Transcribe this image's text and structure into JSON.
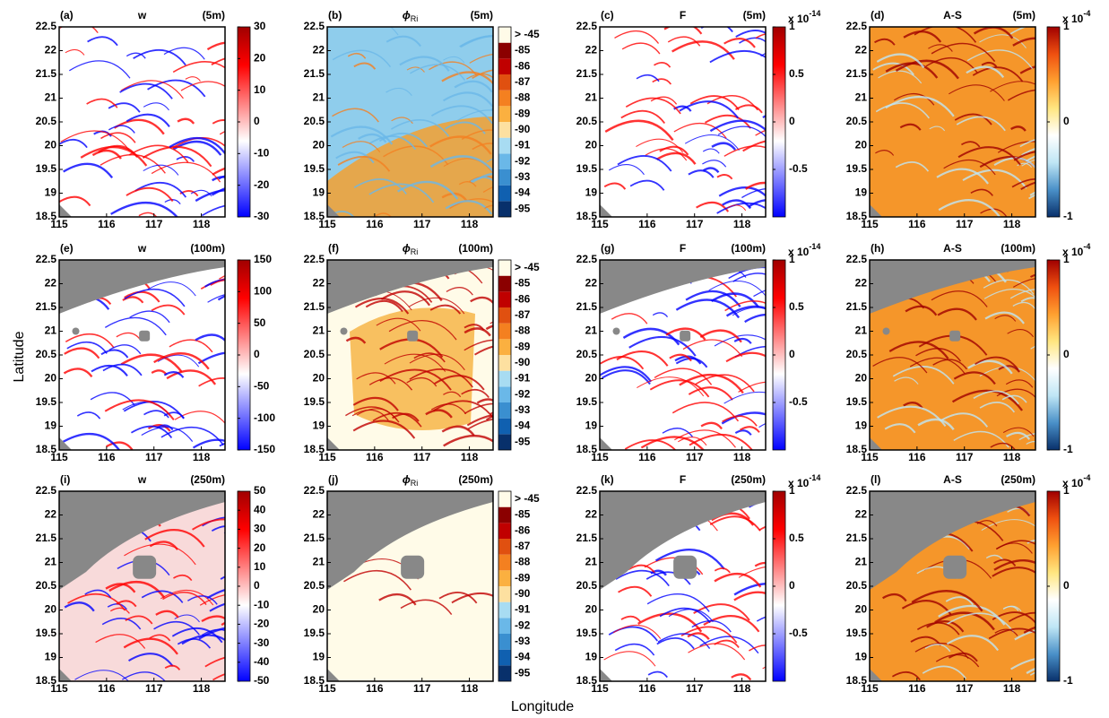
{
  "figure": {
    "xlabel": "Longitude",
    "ylabel": "Latitude"
  },
  "chart_data": [
    {
      "type": "map",
      "label": "(a)",
      "title": "w",
      "depth": "(5m)",
      "xlim": [
        115,
        118.5
      ],
      "xticks": [
        115,
        116,
        117,
        118
      ],
      "ylim": [
        18.5,
        22.5
      ],
      "yticks": [
        18.5,
        19,
        19.5,
        20,
        20.5,
        21,
        21.5,
        22,
        22.5
      ],
      "clim": [
        -30,
        30
      ],
      "cticks": [
        -30,
        -20,
        -10,
        0,
        10,
        20,
        30
      ],
      "colors": [
        "#0000ff",
        "#8080ff",
        "#ffffff",
        "#ff8080",
        "#ff0000",
        "#a00000"
      ]
    },
    {
      "type": "map",
      "label": "(b)",
      "title": "ϕ",
      "title_sub": "Ri",
      "depth": "(5m)",
      "xlim": [
        115,
        118.5
      ],
      "xticks": [
        115,
        116,
        117,
        118
      ],
      "ylim": [
        18.5,
        22.5
      ],
      "yticks": [
        18.5,
        19,
        19.5,
        20,
        20.5,
        21,
        21.5,
        22,
        22.5
      ],
      "ccategories": [
        "-95",
        "-94",
        "-93",
        "-92",
        "-91",
        "-90",
        "-89",
        "-88",
        "-87",
        "-86",
        "-85",
        "> -45"
      ],
      "colors": [
        "#08306b",
        "#1060b0",
        "#3a8fd0",
        "#6ab8e8",
        "#a8dcf2",
        "#fde0a0",
        "#fbb040",
        "#f48020",
        "#e05010",
        "#c00000",
        "#8b0000",
        "#fffbe8"
      ]
    },
    {
      "type": "map",
      "label": "(c)",
      "title": "F",
      "depth": "(5m)",
      "xlim": [
        115,
        118.5
      ],
      "xticks": [
        115,
        116,
        117,
        118
      ],
      "ylim": [
        18.5,
        22.5
      ],
      "yticks": [
        18.5,
        19,
        19.5,
        20,
        20.5,
        21,
        21.5,
        22,
        22.5
      ],
      "clim": [
        -1,
        1
      ],
      "cticks": [
        -0.5,
        0,
        0.5,
        1
      ],
      "cscale": "x 10",
      "cscale_exp": "-14",
      "colors": [
        "#0000ff",
        "#8080ff",
        "#ffffff",
        "#ff8080",
        "#ff0000",
        "#a00000"
      ]
    },
    {
      "type": "map",
      "label": "(d)",
      "title": "A-S",
      "depth": "(5m)",
      "xlim": [
        115,
        118.5
      ],
      "xticks": [
        115,
        116,
        117,
        118
      ],
      "ylim": [
        18.5,
        22.5
      ],
      "yticks": [
        18.5,
        19,
        19.5,
        20,
        20.5,
        21,
        21.5,
        22,
        22.5
      ],
      "clim": [
        -1,
        1
      ],
      "cticks": [
        -1,
        0,
        1
      ],
      "cscale": "x 10",
      "cscale_exp": "-4",
      "colors": [
        "#08306b",
        "#4a90c8",
        "#bfe6f5",
        "#ffffff",
        "#ffe680",
        "#ffa030",
        "#ef5010",
        "#a00000"
      ]
    },
    {
      "type": "map",
      "label": "(e)",
      "title": "w",
      "depth": "(100m)",
      "xlim": [
        115,
        118.5
      ],
      "xticks": [
        115,
        116,
        117,
        118
      ],
      "ylim": [
        18.5,
        22.5
      ],
      "yticks": [
        18.5,
        19,
        19.5,
        20,
        20.5,
        21,
        21.5,
        22,
        22.5
      ],
      "clim": [
        -150,
        150
      ],
      "cticks": [
        -150,
        -100,
        -50,
        0,
        50,
        100,
        150
      ],
      "colors": [
        "#0000ff",
        "#8080ff",
        "#ffffff",
        "#ff8080",
        "#ff0000",
        "#a00000"
      ]
    },
    {
      "type": "map",
      "label": "(f)",
      "title": "ϕ",
      "title_sub": "Ri",
      "depth": "(100m)",
      "xlim": [
        115,
        118.5
      ],
      "xticks": [
        115,
        116,
        117,
        118
      ],
      "ylim": [
        18.5,
        22.5
      ],
      "yticks": [
        18.5,
        19,
        19.5,
        20,
        20.5,
        21,
        21.5,
        22,
        22.5
      ],
      "ccategories": [
        "-95",
        "-94",
        "-93",
        "-92",
        "-91",
        "-90",
        "-89",
        "-88",
        "-87",
        "-86",
        "-85",
        "> -45"
      ],
      "colors": [
        "#08306b",
        "#1060b0",
        "#3a8fd0",
        "#6ab8e8",
        "#a8dcf2",
        "#fde0a0",
        "#fbb040",
        "#f48020",
        "#e05010",
        "#c00000",
        "#8b0000",
        "#fffbe8"
      ]
    },
    {
      "type": "map",
      "label": "(g)",
      "title": "F",
      "depth": "(100m)",
      "xlim": [
        115,
        118.5
      ],
      "xticks": [
        115,
        116,
        117,
        118
      ],
      "ylim": [
        18.5,
        22.5
      ],
      "yticks": [
        18.5,
        19,
        19.5,
        20,
        20.5,
        21,
        21.5,
        22,
        22.5
      ],
      "clim": [
        -1,
        1
      ],
      "cticks": [
        -0.5,
        0,
        0.5,
        1
      ],
      "cscale": "x 10",
      "cscale_exp": "-14",
      "colors": [
        "#0000ff",
        "#8080ff",
        "#ffffff",
        "#ff8080",
        "#ff0000",
        "#a00000"
      ]
    },
    {
      "type": "map",
      "label": "(h)",
      "title": "A-S",
      "depth": "(100m)",
      "xlim": [
        115,
        118.5
      ],
      "xticks": [
        115,
        116,
        117,
        118
      ],
      "ylim": [
        18.5,
        22.5
      ],
      "yticks": [
        18.5,
        19,
        19.5,
        20,
        20.5,
        21,
        21.5,
        22,
        22.5
      ],
      "clim": [
        -1,
        1
      ],
      "cticks": [
        -1,
        0,
        1
      ],
      "cscale": "x 10",
      "cscale_exp": "-4",
      "colors": [
        "#08306b",
        "#4a90c8",
        "#bfe6f5",
        "#ffffff",
        "#ffe680",
        "#ffa030",
        "#ef5010",
        "#a00000"
      ]
    },
    {
      "type": "map",
      "label": "(i)",
      "title": "w",
      "depth": "(250m)",
      "xlim": [
        115,
        118.5
      ],
      "xticks": [
        115,
        116,
        117,
        118
      ],
      "ylim": [
        18.5,
        22.5
      ],
      "yticks": [
        18.5,
        19,
        19.5,
        20,
        20.5,
        21,
        21.5,
        22,
        22.5
      ],
      "clim": [
        -50,
        50
      ],
      "cticks": [
        -50,
        -40,
        -30,
        -20,
        -10,
        0,
        10,
        20,
        30,
        40,
        50
      ],
      "colors": [
        "#0000ff",
        "#8080ff",
        "#ffffff",
        "#ff8080",
        "#ff0000",
        "#a00000"
      ]
    },
    {
      "type": "map",
      "label": "(j)",
      "title": "ϕ",
      "title_sub": "Ri",
      "depth": "(250m)",
      "xlim": [
        115,
        118.5
      ],
      "xticks": [
        115,
        116,
        117,
        118
      ],
      "ylim": [
        18.5,
        22.5
      ],
      "yticks": [
        18.5,
        19,
        19.5,
        20,
        20.5,
        21,
        21.5,
        22,
        22.5
      ],
      "ccategories": [
        "-95",
        "-94",
        "-93",
        "-92",
        "-91",
        "-90",
        "-89",
        "-88",
        "-87",
        "-86",
        "-85",
        "> -45"
      ],
      "colors": [
        "#08306b",
        "#1060b0",
        "#3a8fd0",
        "#6ab8e8",
        "#a8dcf2",
        "#fde0a0",
        "#fbb040",
        "#f48020",
        "#e05010",
        "#c00000",
        "#8b0000",
        "#fffbe8"
      ]
    },
    {
      "type": "map",
      "label": "(k)",
      "title": "F",
      "depth": "(250m)",
      "xlim": [
        115,
        118.5
      ],
      "xticks": [
        115,
        116,
        117,
        118
      ],
      "ylim": [
        18.5,
        22.5
      ],
      "yticks": [
        18.5,
        19,
        19.5,
        20,
        20.5,
        21,
        21.5,
        22,
        22.5
      ],
      "clim": [
        -1,
        1
      ],
      "cticks": [
        -0.5,
        0,
        0.5,
        1
      ],
      "cscale": "x 10",
      "cscale_exp": "-14",
      "colors": [
        "#0000ff",
        "#8080ff",
        "#ffffff",
        "#ff8080",
        "#ff0000",
        "#a00000"
      ]
    },
    {
      "type": "map",
      "label": "(l)",
      "title": "A-S",
      "depth": "(250m)",
      "xlim": [
        115,
        118.5
      ],
      "xticks": [
        115,
        116,
        117,
        118
      ],
      "ylim": [
        18.5,
        22.5
      ],
      "yticks": [
        18.5,
        19,
        19.5,
        20,
        20.5,
        21,
        21.5,
        22,
        22.5
      ],
      "clim": [
        -1,
        1
      ],
      "cticks": [
        -1,
        0,
        1
      ],
      "cscale": "x 10",
      "cscale_exp": "-4",
      "colors": [
        "#08306b",
        "#4a90c8",
        "#bfe6f5",
        "#ffffff",
        "#ffe680",
        "#ffa030",
        "#ef5010",
        "#a00000"
      ]
    }
  ]
}
